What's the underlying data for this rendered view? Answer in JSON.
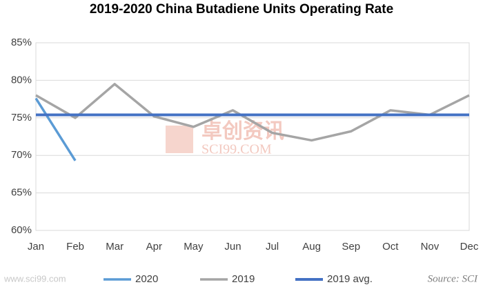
{
  "chart_data": {
    "type": "line",
    "title": "2019-2020 China Butadiene Units Operating Rate",
    "categories": [
      "Jan",
      "Feb",
      "Mar",
      "Apr",
      "May",
      "Jun",
      "Jul",
      "Aug",
      "Sep",
      "Oct",
      "Nov",
      "Dec"
    ],
    "series": [
      {
        "name": "2020",
        "color": "#5b9bd5",
        "values": [
          77.6,
          69.3,
          null,
          null,
          null,
          null,
          null,
          null,
          null,
          null,
          null,
          null
        ]
      },
      {
        "name": "2019",
        "color": "#a5a5a5",
        "values": [
          78,
          75,
          79.5,
          75.2,
          73.8,
          76,
          73,
          72,
          73.2,
          76,
          75.4,
          78
        ]
      },
      {
        "name": "2019 avg.",
        "color": "#4472c4",
        "values": [
          75.4,
          75.4,
          75.4,
          75.4,
          75.4,
          75.4,
          75.4,
          75.4,
          75.4,
          75.4,
          75.4,
          75.4
        ]
      }
    ],
    "ylim": [
      60,
      85
    ],
    "yticks": [
      {
        "value": 60,
        "label": "60%"
      },
      {
        "value": 65,
        "label": "65%"
      },
      {
        "value": 70,
        "label": "70%"
      },
      {
        "value": 75,
        "label": "75%"
      },
      {
        "value": 80,
        "label": "80%"
      },
      {
        "value": 85,
        "label": "85%"
      }
    ],
    "grid": true,
    "legend": "bottom",
    "source": "Source: SCI",
    "watermark": [
      "卓创资讯",
      "SCI99.COM"
    ],
    "url": "www.sci99.com"
  }
}
